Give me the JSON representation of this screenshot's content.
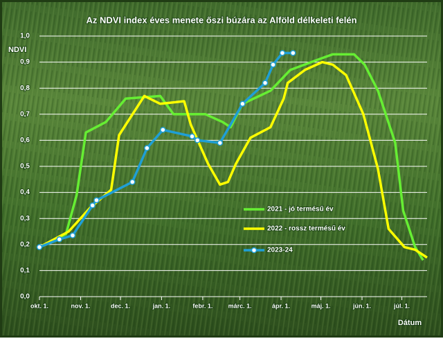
{
  "chart_data": {
    "type": "line",
    "title": "Az NDVI index éves menete őszi búzára az Alföld délkeleti felén",
    "y_label": "NDVI",
    "x_label": "Dátum",
    "xlim": [
      0,
      292
    ],
    "xticks": [
      {
        "value": 0,
        "label": "okt. 1."
      },
      {
        "value": 31,
        "label": "nov. 1."
      },
      {
        "value": 61,
        "label": "dec. 1."
      },
      {
        "value": 92,
        "label": "jan. 1."
      },
      {
        "value": 123,
        "label": "febr. 1."
      },
      {
        "value": 151,
        "label": "márc. 1."
      },
      {
        "value": 182,
        "label": "ápr. 1."
      },
      {
        "value": 212,
        "label": "máj. 1."
      },
      {
        "value": 243,
        "label": "jún. 1."
      },
      {
        "value": 273,
        "label": "júl. 1."
      }
    ],
    "ylim": [
      0,
      1
    ],
    "yticks": [
      {
        "value": 0,
        "label": "0,0"
      },
      {
        "value": 0.1,
        "label": "0,1"
      },
      {
        "value": 0.2,
        "label": "0,2"
      },
      {
        "value": 0.3,
        "label": "0,3"
      },
      {
        "value": 0.4,
        "label": "0,4"
      },
      {
        "value": 0.5,
        "label": "0,5"
      },
      {
        "value": 0.6,
        "label": "0,6"
      },
      {
        "value": 0.7,
        "label": "0,7"
      },
      {
        "value": 0.8,
        "label": "0,8"
      },
      {
        "value": 0.9,
        "label": "0,9"
      },
      {
        "value": 1,
        "label": "1,0"
      }
    ],
    "grid": true,
    "series": [
      {
        "name": "2021 - jó termésű év",
        "color": "#66ee33",
        "markers": false,
        "x": [
          0,
          20,
          28,
          35,
          50,
          65,
          91,
          101,
          125,
          138,
          144,
          153,
          174,
          189,
          210,
          221,
          237,
          245,
          255,
          268,
          274,
          283,
          289
        ],
        "values": [
          0.19,
          0.24,
          0.39,
          0.63,
          0.67,
          0.76,
          0.77,
          0.7,
          0.7,
          0.67,
          0.65,
          0.74,
          0.79,
          0.87,
          0.91,
          0.93,
          0.93,
          0.89,
          0.79,
          0.59,
          0.33,
          0.19,
          0.14
        ]
      },
      {
        "name": "2022 - rossz termésű év",
        "color": "#ffff00",
        "markers": false,
        "x": [
          0,
          22,
          38,
          54,
          60,
          79,
          91,
          109,
          114,
          127,
          136,
          142,
          148,
          159,
          174,
          184,
          187,
          200,
          213,
          221,
          231,
          244,
          255,
          263,
          275,
          283,
          292
        ],
        "values": [
          0.19,
          0.25,
          0.34,
          0.41,
          0.62,
          0.77,
          0.74,
          0.75,
          0.66,
          0.51,
          0.43,
          0.44,
          0.51,
          0.61,
          0.65,
          0.76,
          0.82,
          0.87,
          0.9,
          0.89,
          0.85,
          0.7,
          0.49,
          0.26,
          0.19,
          0.18,
          0.15
        ]
      },
      {
        "name": "2023-24",
        "color": "#1f9fd6",
        "markers": true,
        "x": [
          0,
          15,
          25,
          40,
          43,
          70,
          81,
          93,
          115,
          119,
          136,
          153,
          170,
          176,
          183,
          191
        ],
        "values": [
          0.19,
          0.22,
          0.235,
          0.35,
          0.37,
          0.44,
          0.57,
          0.64,
          0.615,
          0.6,
          0.59,
          0.74,
          0.82,
          0.89,
          0.935,
          0.935
        ]
      }
    ]
  }
}
